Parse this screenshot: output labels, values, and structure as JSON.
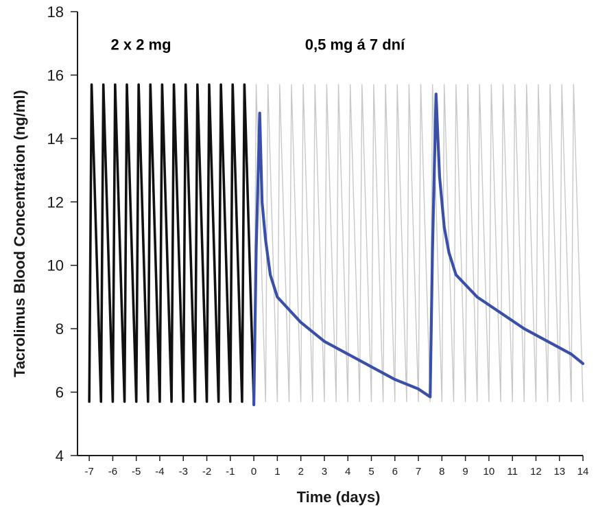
{
  "chart_data": {
    "type": "line",
    "title": "",
    "xlabel": "Time (days)",
    "ylabel": "Tacrolimus Blood Concentration (ng/ml)",
    "xlim": [
      -7.5,
      14
    ],
    "ylim": [
      4,
      18
    ],
    "x_ticks": [
      -7,
      -6,
      -5,
      -4,
      -3,
      -2,
      -1,
      0,
      1,
      2,
      3,
      4,
      5,
      6,
      7,
      8,
      9,
      10,
      11,
      12,
      13,
      14
    ],
    "x_tick_labels": [
      "-7",
      "-6",
      "-5",
      "-4",
      "-3",
      "-2",
      "-1",
      "0",
      "1",
      "2",
      "3",
      "4",
      "5",
      "6",
      "7",
      "8",
      "9",
      "10",
      "11",
      "12",
      "13",
      "14"
    ],
    "y_ticks": [
      4,
      6,
      8,
      10,
      12,
      14,
      16,
      18
    ],
    "y_tick_labels": [
      "4",
      "6",
      "8",
      "10",
      "12",
      "14",
      "16",
      "18"
    ],
    "grid": false,
    "legend": false,
    "annotations": [
      {
        "text": "2 x 2 mg",
        "x": -4.8,
        "y": 16.8
      },
      {
        "text": "0,5 mg á 7 dní",
        "x": 4.3,
        "y": 16.8
      }
    ],
    "series": [
      {
        "style": "thin gray oscillation (twice-daily regimen continued)",
        "color": "#c8c8c8",
        "x": [
          0.0,
          0.1,
          0.5,
          0.6,
          1.0,
          1.1,
          1.5,
          1.6,
          2.0,
          2.1,
          2.5,
          2.6,
          3.0,
          3.1,
          3.5,
          3.6,
          4.0,
          4.1,
          4.5,
          4.6,
          5.0,
          5.1,
          5.5,
          5.6,
          6.0,
          6.1,
          6.5,
          6.6,
          7.0,
          7.1,
          7.5,
          7.6,
          8.0,
          8.1,
          8.5,
          8.6,
          9.0,
          9.1,
          9.5,
          9.6,
          10.0,
          10.1,
          10.5,
          10.6,
          11.0,
          11.1,
          11.5,
          11.6,
          12.0,
          12.1,
          12.5,
          12.6,
          13.0,
          13.1,
          13.5,
          13.6,
          14.0
        ],
        "y": [
          5.7,
          15.7,
          5.7,
          15.7,
          5.7,
          15.7,
          5.7,
          15.7,
          5.7,
          15.7,
          5.7,
          15.7,
          5.7,
          15.7,
          5.7,
          15.7,
          5.7,
          15.7,
          5.7,
          15.7,
          5.7,
          15.7,
          5.7,
          15.7,
          5.7,
          15.7,
          5.7,
          15.7,
          5.7,
          15.7,
          5.7,
          15.7,
          5.7,
          15.7,
          5.7,
          15.7,
          5.7,
          15.7,
          5.7,
          15.7,
          5.7,
          15.7,
          5.7,
          15.7,
          5.7,
          15.7,
          5.7,
          15.7,
          5.7,
          15.7,
          5.7,
          15.7,
          5.7,
          15.7,
          5.7,
          15.7,
          5.7
        ]
      },
      {
        "style": "thick black oscillation (2 x 2 mg)",
        "color": "#111111",
        "x": [
          -7.0,
          -6.9,
          -6.5,
          -6.4,
          -6.0,
          -5.9,
          -5.5,
          -5.4,
          -5.0,
          -4.9,
          -4.5,
          -4.4,
          -4.0,
          -3.9,
          -3.5,
          -3.4,
          -3.0,
          -2.9,
          -2.5,
          -2.4,
          -2.0,
          -1.9,
          -1.5,
          -1.4,
          -1.0,
          -0.9,
          -0.5,
          -0.4,
          0.0
        ],
        "y": [
          5.7,
          15.7,
          5.7,
          15.7,
          5.7,
          15.7,
          5.7,
          15.7,
          5.7,
          15.7,
          5.7,
          15.7,
          5.7,
          15.7,
          5.7,
          15.7,
          5.7,
          15.7,
          5.7,
          15.7,
          5.7,
          15.7,
          5.7,
          15.7,
          5.7,
          15.7,
          5.7,
          15.7,
          5.7
        ]
      },
      {
        "style": "thick blue (0,5 mg á 7 dní)",
        "color": "#3a50a8",
        "x": [
          0.0,
          0.1,
          0.25,
          0.35,
          0.5,
          0.7,
          1.0,
          2.0,
          3.0,
          4.0,
          5.0,
          6.0,
          7.0,
          7.5,
          7.6,
          7.75,
          7.9,
          8.1,
          8.3,
          8.6,
          9.5,
          10.5,
          11.5,
          12.5,
          13.5,
          14.0
        ],
        "y": [
          5.6,
          10.5,
          14.8,
          12.0,
          10.8,
          9.7,
          9.0,
          8.2,
          7.6,
          7.2,
          6.8,
          6.4,
          6.1,
          5.85,
          10.5,
          15.4,
          12.8,
          11.2,
          10.4,
          9.7,
          9.0,
          8.5,
          8.0,
          7.6,
          7.2,
          6.9
        ]
      }
    ]
  }
}
